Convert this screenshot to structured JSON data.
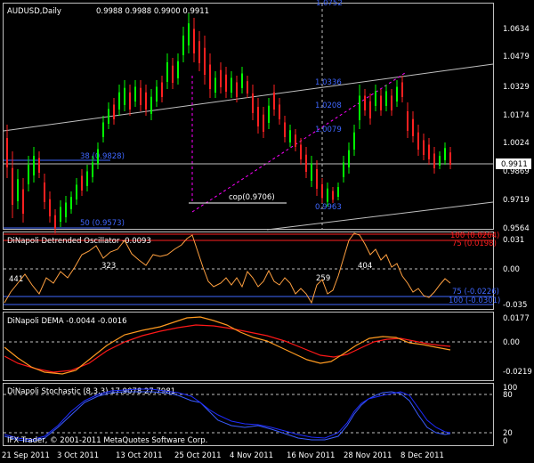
{
  "main": {
    "symbol_title": "AUDUSD,Daily",
    "ohlc": "0.9988 0.9988 0.9900 0.9911",
    "price_ticks": [
      "1.0634",
      "1.0479",
      "1.0329",
      "1.0174",
      "1.0024",
      "0.9869",
      "0.9719",
      "0.9564"
    ],
    "current_price": "0.9911",
    "fib_levels": [
      {
        "label": "1.0336",
        "color": "#3f67ff"
      },
      {
        "label": "1.0208",
        "color": "#3f67ff"
      },
      {
        "label": "1.0079",
        "color": "#3f67ff"
      },
      {
        "label": "0.9963",
        "color": "#3f67ff"
      }
    ],
    "top_fib_label": "1.0752",
    "left_levels": [
      {
        "label": "38 (0.9828)"
      },
      {
        "label": "50 (0.9573)"
      }
    ],
    "cop_label": "cop(0.9706)"
  },
  "osc": {
    "title": "DiNapoli Detrended Oscillator -0.0093",
    "ticks": [
      "0.031",
      "0.00",
      "-0.035"
    ],
    "levels": [
      {
        "label": "100 (0.0264)",
        "color": "#ff2020"
      },
      {
        "label": "75 (0.0198)",
        "color": "#ff2020"
      },
      {
        "label": "75 (-0.0226)",
        "color": "#3f67ff"
      },
      {
        "label": "100 (-0.0301)",
        "color": "#3f67ff"
      }
    ],
    "bar_counts": [
      "441",
      "323",
      "259",
      "404"
    ]
  },
  "dema": {
    "title": "DiNapoli DEMA -0.0044 -0.0016",
    "ticks": [
      "0.0177",
      "0.00",
      "-0.0219"
    ]
  },
  "stoch": {
    "title": "DiNapoli Stochastic (8,3,3) 17.9078 27.7981",
    "ticks": [
      "100",
      "80",
      "20",
      "0"
    ]
  },
  "copyright": "IFX Trader, © 2001-2011 MetaQuotes Software Corp.",
  "dates": [
    "21 Sep 2011",
    "3 Oct 2011",
    "13 Oct 2011",
    "25 Oct 2011",
    "4 Nov 2011",
    "16 Nov 2011",
    "28 Nov 2011",
    "8 Dec 2011"
  ],
  "colors": {
    "bull": "#00ff00",
    "bear": "#ff2020",
    "fib": "#3f67ff",
    "osc": "#ffa040",
    "dema_fast": "#ff9a20",
    "dema_slow": "#ff1818",
    "stoch_k": "#3a5cff",
    "stoch_d": "#1e2cff",
    "grid": "#c0c0c0",
    "channel": "#c0c0c0",
    "cursor": "#c0c0c0",
    "cop_line": "#ff00ff"
  }
}
